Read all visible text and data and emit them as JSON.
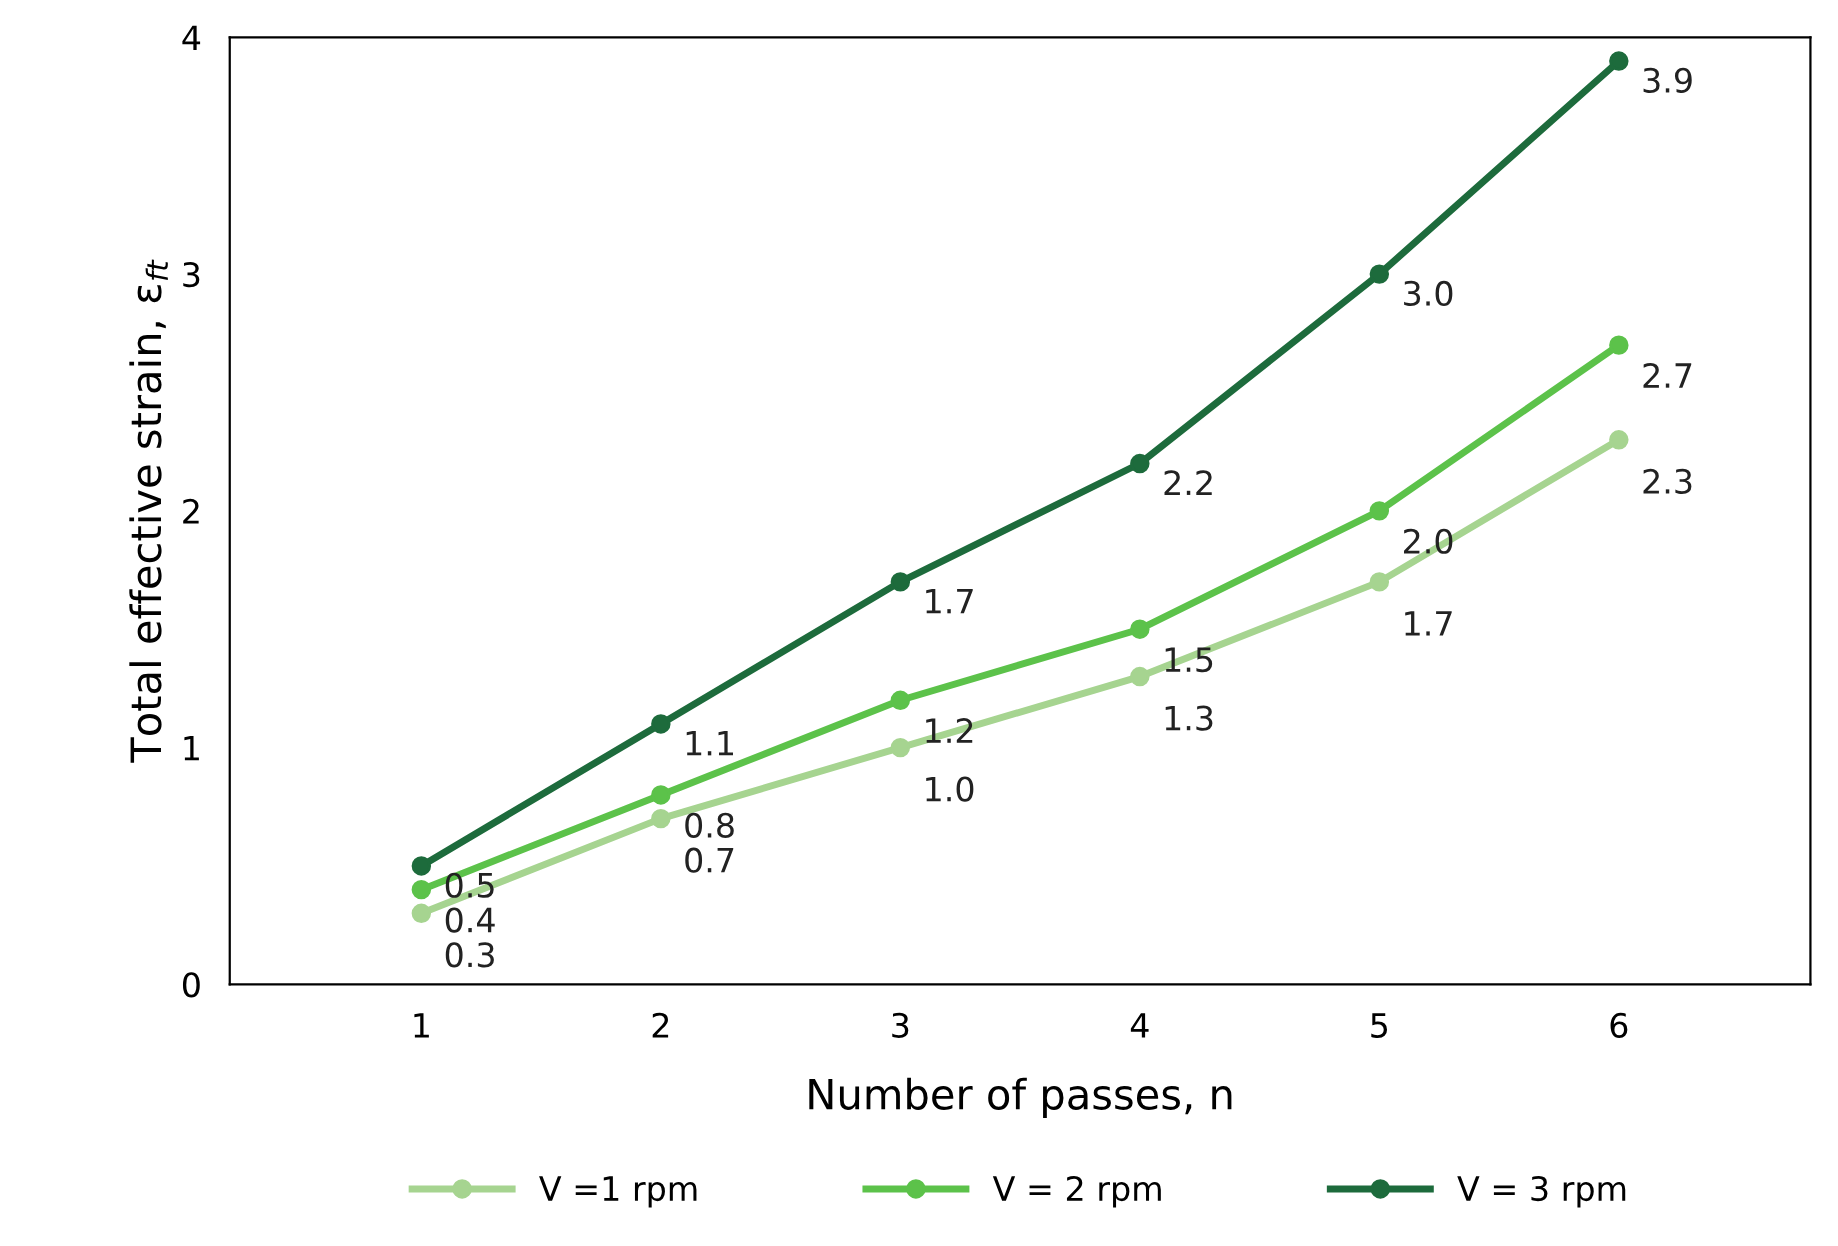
{
  "chart_data": {
    "type": "line",
    "xlabel": "Number of passes, n",
    "ylabel": "Total effective strain, ε$_{ft}$",
    "categories": [
      "1",
      "2",
      "3",
      "4",
      "5",
      "6"
    ],
    "series": [
      {
        "name": "V =1 rpm",
        "color": "#a6d490",
        "values": [
          0.3,
          0.7,
          1.0,
          1.3,
          1.7,
          2.3
        ],
        "value_labels": [
          "0.3",
          "0.7",
          "1.0",
          "1.3",
          "1.7",
          "2.3"
        ]
      },
      {
        "name": "V = 2 rpm",
        "color": "#5cc24a",
        "values": [
          0.4,
          0.8,
          1.2,
          1.5,
          2.0,
          2.7
        ],
        "value_labels": [
          "0.4",
          "0.8",
          "1.2",
          "1.5",
          "2.0",
          "2.7"
        ]
      },
      {
        "name": "V = 3 rpm",
        "color": "#1d6b3c",
        "values": [
          0.5,
          1.1,
          1.7,
          2.2,
          3.0,
          3.9
        ],
        "value_labels": [
          "0.5",
          "1.1",
          "1.7",
          "2.2",
          "3.0",
          "3.9"
        ]
      }
    ],
    "ylim": [
      0,
      4
    ],
    "yticks": [
      0,
      1,
      2,
      3,
      4
    ],
    "marker": "circle",
    "line_style": "solid",
    "grid": false,
    "legend": "bottom"
  }
}
